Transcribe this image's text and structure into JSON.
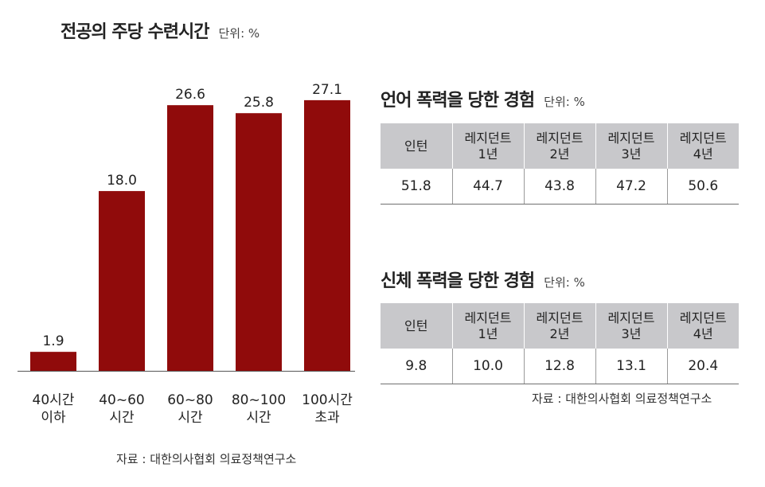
{
  "chart_data": {
    "type": "bar",
    "title": "전공의 주당 수련시간",
    "unit": "단위: %",
    "categories": [
      [
        "40시간",
        "이하"
      ],
      [
        "40~60",
        "시간"
      ],
      [
        "60~80",
        "시간"
      ],
      [
        "80~100",
        "시간"
      ],
      [
        "100시간",
        "초과"
      ]
    ],
    "values": [
      1.9,
      18.0,
      26.6,
      25.8,
      27.1
    ],
    "value_labels": [
      "1.9",
      "18.0",
      "26.6",
      "25.8",
      "27.1"
    ],
    "ylim": [
      0,
      30
    ],
    "bar_color": "#900b0b",
    "source": "자료 : 대한의사협회 의료정책연구소"
  },
  "tables": [
    {
      "title": "언어 폭력을 당한 경험",
      "unit": "단위: %",
      "headers": [
        "인턴",
        "레지던트\n1년",
        "레지던트\n2년",
        "레지던트\n3년",
        "레지던트\n4년"
      ],
      "values": [
        "51.8",
        "44.7",
        "43.8",
        "47.2",
        "50.6"
      ]
    },
    {
      "title": "신체 폭력을 당한 경험",
      "unit": "단위: %",
      "headers": [
        "인턴",
        "레지던트\n1년",
        "레지던트\n2년",
        "레지던트\n3년",
        "레지던트\n4년"
      ],
      "values": [
        "9.8",
        "10.0",
        "12.8",
        "13.1",
        "20.4"
      ]
    }
  ],
  "table_source": "자료 : 대한의사협회 의료정책연구소",
  "colors": {
    "header_bg": "#c8c8cb",
    "text": "#222222"
  }
}
